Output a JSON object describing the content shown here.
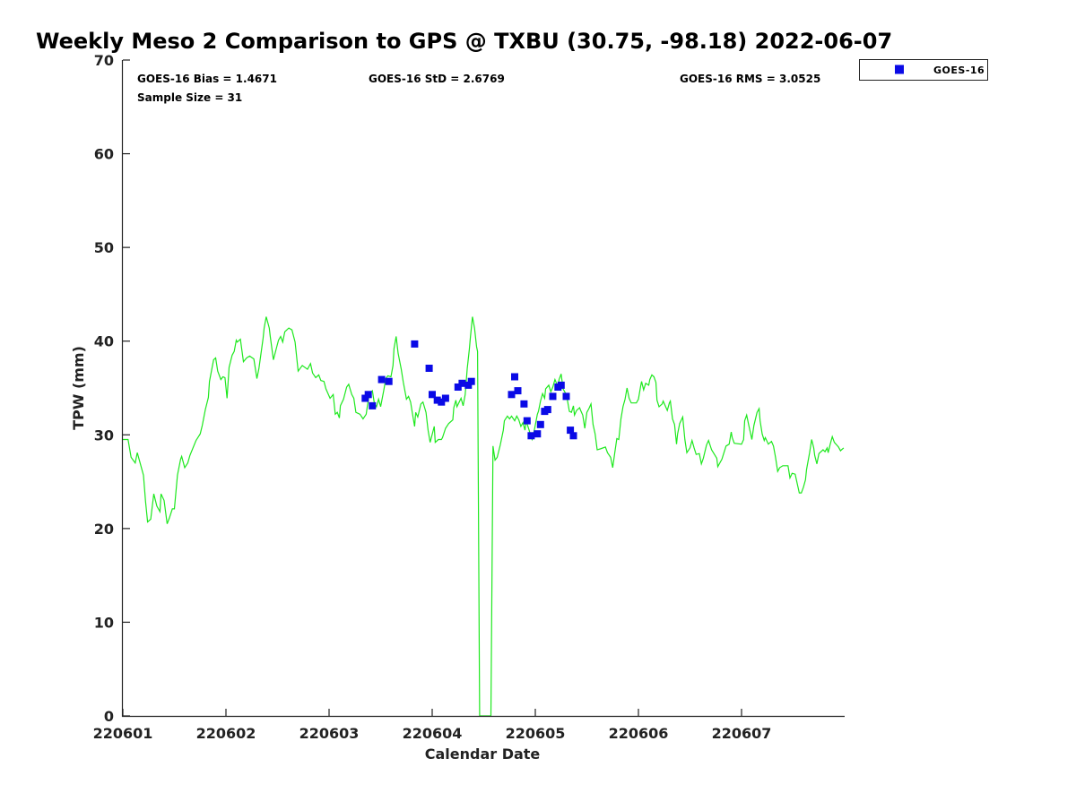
{
  "chart_data": {
    "type": "scatter",
    "title": "Weekly Meso 2 Comparison to GPS @ TXBU (30.75, -98.18) 2022-06-07",
    "xlabel": "Calendar Date",
    "ylabel": "TPW (mm)",
    "x_unit": "days since 220601",
    "xlim": [
      0,
      7
    ],
    "ylim": [
      0,
      70
    ],
    "xticks": [
      0,
      1,
      2,
      3,
      4,
      5,
      6
    ],
    "xtick_labels": [
      "220601",
      "220602",
      "220603",
      "220604",
      "220605",
      "220606",
      "220607"
    ],
    "yticks": [
      0,
      10,
      20,
      30,
      40,
      50,
      60,
      70
    ],
    "ytick_labels": [
      "0",
      "10",
      "20",
      "30",
      "40",
      "50",
      "60",
      "70"
    ],
    "grid": false,
    "legend_position": "top-right-outside",
    "stats": {
      "bias": "GOES-16 Bias = 1.4671",
      "std": "GOES-16 StD = 2.6769",
      "rms": "GOES-16 RMS = 3.0525",
      "sample": "Sample Size = 31"
    },
    "series": [
      {
        "name": "GPS",
        "kind": "line",
        "color": "#1ee81e",
        "x": [
          0.0,
          0.05,
          0.08,
          0.12,
          0.14,
          0.2,
          0.22,
          0.24,
          0.27,
          0.3,
          0.33,
          0.36,
          0.37,
          0.4,
          0.43,
          0.45,
          0.48,
          0.5,
          0.53,
          0.56,
          0.57,
          0.6,
          0.63,
          0.65,
          0.71,
          0.75,
          0.77,
          0.8,
          0.83,
          0.84,
          0.88,
          0.9,
          0.92,
          0.95,
          0.97,
          0.99,
          1.01,
          1.03,
          1.06,
          1.08,
          1.1,
          1.11,
          1.14,
          1.17,
          1.2,
          1.23,
          1.27,
          1.3,
          1.32,
          1.36,
          1.37,
          1.39,
          1.42,
          1.43,
          1.46,
          1.49,
          1.51,
          1.53,
          1.55,
          1.57,
          1.61,
          1.64,
          1.67,
          1.7,
          1.74,
          1.79,
          1.82,
          1.84,
          1.87,
          1.9,
          1.92,
          1.95,
          1.97,
          2.01,
          2.04,
          2.06,
          2.08,
          2.1,
          2.11,
          2.14,
          2.17,
          2.19,
          2.22,
          2.24,
          2.26,
          2.3,
          2.33,
          2.36,
          2.37,
          2.39,
          2.42,
          2.44,
          2.46,
          2.48,
          2.5,
          2.53,
          2.55,
          2.57,
          2.6,
          2.62,
          2.63,
          2.65,
          2.67,
          2.7,
          2.72,
          2.75,
          2.77,
          2.79,
          2.81,
          2.83,
          2.84,
          2.86,
          2.89,
          2.91,
          2.94,
          2.96,
          2.98,
          3.02,
          3.03,
          3.06,
          3.09,
          3.1,
          3.13,
          3.16,
          3.2,
          3.21,
          3.23,
          3.24,
          3.28,
          3.3,
          3.32,
          3.34,
          3.36,
          3.37,
          3.39,
          3.41,
          3.43,
          3.44,
          3.46,
          3.57,
          3.59,
          3.61,
          3.63,
          3.66,
          3.69,
          3.7,
          3.73,
          3.75,
          3.77,
          3.8,
          3.82,
          3.84,
          3.86,
          3.88,
          3.9,
          3.91,
          3.94,
          3.96,
          3.97,
          3.99,
          4.02,
          4.03,
          4.05,
          4.07,
          4.09,
          4.1,
          4.13,
          4.15,
          4.17,
          4.19,
          4.22,
          4.23,
          4.25,
          4.27,
          4.3,
          4.31,
          4.33,
          4.35,
          4.37,
          4.38,
          4.4,
          4.43,
          4.44,
          4.46,
          4.48,
          4.5,
          4.52,
          4.54,
          4.56,
          4.58,
          4.6,
          4.63,
          4.68,
          4.7,
          4.73,
          4.75,
          4.77,
          4.79,
          4.81,
          4.83,
          4.85,
          4.87,
          4.89,
          4.91,
          4.93,
          4.98,
          5.0,
          5.02,
          5.03,
          5.05,
          5.07,
          5.1,
          5.11,
          5.13,
          5.15,
          5.17,
          5.18,
          5.2,
          5.23,
          5.24,
          5.26,
          5.28,
          5.3,
          5.31,
          5.33,
          5.35,
          5.37,
          5.38,
          5.4,
          5.43,
          5.45,
          5.47,
          5.5,
          5.52,
          5.54,
          5.56,
          5.59,
          5.61,
          5.63,
          5.66,
          5.68,
          5.71,
          5.76,
          5.77,
          5.81,
          5.85,
          5.88,
          5.9,
          5.91,
          5.93,
          6.0,
          6.02,
          6.03,
          6.05,
          6.07,
          6.09,
          6.1,
          6.12,
          6.15,
          6.17,
          6.18,
          6.2,
          6.22,
          6.23,
          6.26,
          6.29,
          6.31,
          6.33,
          6.35,
          6.37,
          6.4,
          6.45,
          6.47,
          6.49,
          6.52,
          6.54,
          6.56,
          6.58,
          6.6,
          6.62,
          6.63,
          6.66,
          6.68,
          6.7,
          6.71,
          6.73,
          6.75,
          6.79,
          6.81,
          6.83,
          6.84,
          6.86,
          6.88,
          6.9,
          6.94,
          6.96,
          6.97,
          6.99
        ],
        "y": [
          29.5,
          29.5,
          27.6,
          27.0,
          28.1,
          25.7,
          22.9,
          20.7,
          21.0,
          23.7,
          22.4,
          21.8,
          23.7,
          23.0,
          20.5,
          21.1,
          22.1,
          22.1,
          25.7,
          27.4,
          27.7,
          26.5,
          27.0,
          27.8,
          29.4,
          30.1,
          31.0,
          32.7,
          34.0,
          35.7,
          38.0,
          38.2,
          36.8,
          35.9,
          36.2,
          36.1,
          33.9,
          37.2,
          38.5,
          38.9,
          40.1,
          39.9,
          40.2,
          37.8,
          38.2,
          38.4,
          38.1,
          36.0,
          37.1,
          40.3,
          41.4,
          42.6,
          41.4,
          40.5,
          38.0,
          39.3,
          40.1,
          40.5,
          39.9,
          41.0,
          41.4,
          41.2,
          39.9,
          36.8,
          37.4,
          37.0,
          37.6,
          36.6,
          36.1,
          36.4,
          35.8,
          35.7,
          34.9,
          33.9,
          34.3,
          32.2,
          32.4,
          31.8,
          33.1,
          33.8,
          35.1,
          35.4,
          34.3,
          33.9,
          32.4,
          32.2,
          31.7,
          32.2,
          33.0,
          34.4,
          34.7,
          33.3,
          33.0,
          33.8,
          33.0,
          34.7,
          36.0,
          36.3,
          36.2,
          37.4,
          39.2,
          40.5,
          38.7,
          37.0,
          35.6,
          33.8,
          34.1,
          33.5,
          32.2,
          30.9,
          32.4,
          31.9,
          33.3,
          33.5,
          32.4,
          30.5,
          29.2,
          30.9,
          29.2,
          29.5,
          29.5,
          29.7,
          30.7,
          31.2,
          31.6,
          32.9,
          33.7,
          33.0,
          33.9,
          33.1,
          34.3,
          37.1,
          39.1,
          40.3,
          42.6,
          41.4,
          39.4,
          38.9,
          0,
          0,
          28.8,
          27.3,
          27.6,
          28.9,
          30.5,
          31.5,
          32.0,
          31.7,
          32.0,
          31.5,
          32.0,
          31.6,
          30.9,
          31.3,
          30.5,
          31.5,
          30.5,
          29.7,
          29.5,
          30.5,
          32.2,
          32.5,
          33.6,
          34.4,
          33.9,
          34.9,
          35.3,
          34.6,
          35.1,
          35.9,
          35.1,
          35.9,
          36.5,
          34.9,
          34.3,
          33.8,
          32.5,
          32.4,
          33.1,
          32.1,
          32.6,
          32.9,
          32.6,
          32.1,
          30.7,
          32.4,
          32.8,
          33.3,
          31.1,
          30.1,
          28.4,
          28.5,
          28.7,
          28.1,
          27.6,
          26.5,
          28.0,
          29.6,
          29.5,
          31.7,
          33.0,
          33.8,
          35.0,
          33.9,
          33.4,
          33.4,
          33.8,
          35.1,
          35.7,
          34.8,
          35.5,
          35.3,
          35.9,
          36.4,
          36.2,
          35.6,
          33.7,
          33.0,
          33.3,
          33.6,
          33.1,
          32.6,
          33.4,
          33.6,
          31.7,
          31.1,
          29.0,
          30.1,
          31.2,
          31.9,
          29.5,
          28.1,
          28.6,
          29.4,
          28.6,
          27.9,
          28.0,
          26.9,
          27.5,
          28.9,
          29.4,
          28.4,
          27.5,
          26.6,
          27.4,
          28.8,
          29.0,
          30.3,
          29.7,
          29.1,
          29.0,
          29.5,
          31.5,
          32.1,
          31.0,
          30.0,
          29.5,
          31.0,
          32.4,
          32.8,
          31.5,
          30.1,
          29.4,
          29.7,
          29.0,
          29.3,
          28.8,
          27.6,
          26.1,
          26.5,
          26.7,
          26.7,
          25.4,
          25.9,
          25.8,
          24.8,
          23.8,
          23.8,
          24.4,
          25.2,
          26.3,
          28.1,
          29.5,
          28.6,
          27.8,
          26.9,
          28.0,
          28.4,
          28.2,
          28.6,
          28.1,
          29.0,
          29.8,
          29.2,
          28.7,
          28.3,
          28.4,
          28.6
        ]
      },
      {
        "name": "GOES-16",
        "kind": "scatter",
        "marker": "square",
        "color": "#0a0ae6",
        "x": [
          2.35,
          2.38,
          2.42,
          2.51,
          2.58,
          2.83,
          2.97,
          3.0,
          3.05,
          3.09,
          3.13,
          3.25,
          3.29,
          3.35,
          3.38,
          3.77,
          3.8,
          3.83,
          3.89,
          3.92,
          3.96,
          4.02,
          4.05,
          4.09,
          4.12,
          4.17,
          4.22,
          4.25,
          4.3,
          4.34,
          4.37
        ],
        "y": [
          33.9,
          34.3,
          33.1,
          35.9,
          35.7,
          39.7,
          37.1,
          34.3,
          33.7,
          33.5,
          33.9,
          35.1,
          35.5,
          35.3,
          35.7,
          34.3,
          36.2,
          34.7,
          33.3,
          31.5,
          29.9,
          30.1,
          31.1,
          32.5,
          32.7,
          34.1,
          35.1,
          35.3,
          34.1,
          30.5,
          29.9
        ]
      }
    ],
    "legend": [
      "GOES-16"
    ]
  }
}
